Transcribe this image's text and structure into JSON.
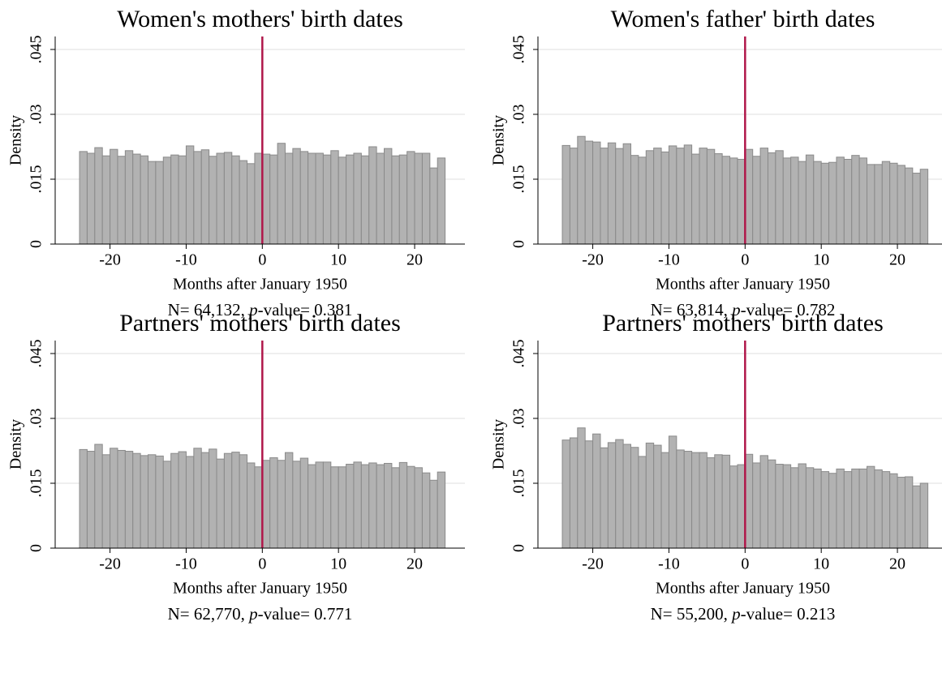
{
  "chart_data": [
    {
      "type": "histogram",
      "title": "Women's mothers' birth dates",
      "xlabel": "Months after January 1950",
      "ylabel": "Density",
      "note": [
        "N= 64,132, ",
        "p",
        "-value= 0.381"
      ],
      "bins": [
        -24,
        -23,
        -22,
        -21,
        -20,
        -19,
        -18,
        -17,
        -16,
        -15,
        -14,
        -13,
        -12,
        -11,
        -10,
        -9,
        -8,
        -7,
        -6,
        -5,
        -4,
        -3,
        -2,
        -1,
        0,
        1,
        2,
        3,
        4,
        5,
        6,
        7,
        8,
        9,
        10,
        11,
        12,
        13,
        14,
        15,
        16,
        17,
        18,
        19,
        20,
        21,
        22,
        23,
        24
      ],
      "values": [
        0.0214,
        0.021,
        0.0223,
        0.0204,
        0.0219,
        0.0203,
        0.0216,
        0.0208,
        0.0204,
        0.0191,
        0.0191,
        0.0201,
        0.0206,
        0.0204,
        0.0227,
        0.0214,
        0.0218,
        0.0203,
        0.021,
        0.0212,
        0.0204,
        0.0193,
        0.0186,
        0.021,
        0.0208,
        0.0206,
        0.0233,
        0.021,
        0.0221,
        0.0214,
        0.021,
        0.021,
        0.0206,
        0.0216,
        0.0201,
        0.0206,
        0.021,
        0.0204,
        0.0225,
        0.021,
        0.0221,
        0.0204,
        0.0206,
        0.0214,
        0.021,
        0.021,
        0.0176,
        0.0199
      ],
      "color": "#b2b2b2",
      "edgecolor": "#8a8a8a",
      "ref_line": {
        "x": 0,
        "color": "#b0174a"
      },
      "xlim": [
        -27.2,
        26.6
      ],
      "ylim": [
        0,
        0.048
      ],
      "xticks": [
        -20,
        -10,
        0,
        10,
        20
      ],
      "yticks": [
        0,
        {
          "value": 0.015,
          "label": ".015"
        },
        {
          "value": 0.03,
          "label": ".03"
        },
        {
          "value": 0.045,
          "label": ".045"
        }
      ],
      "grid": true
    },
    {
      "type": "histogram",
      "title": "Women's father' birth dates",
      "xlabel": "Months after January 1950",
      "ylabel": "Density",
      "note": [
        "N= 63,814, ",
        "p",
        "-value= 0.782"
      ],
      "bins": [
        -24,
        -23,
        -22,
        -21,
        -20,
        -19,
        -18,
        -17,
        -16,
        -15,
        -14,
        -13,
        -12,
        -11,
        -10,
        -9,
        -8,
        -7,
        -6,
        -5,
        -4,
        -3,
        -2,
        -1,
        0,
        1,
        2,
        3,
        4,
        5,
        6,
        7,
        8,
        9,
        10,
        11,
        12,
        13,
        14,
        15,
        16,
        17,
        18,
        19,
        20,
        21,
        22,
        23,
        24
      ],
      "values": [
        0.0228,
        0.0222,
        0.0249,
        0.0238,
        0.0236,
        0.0222,
        0.0234,
        0.0221,
        0.0232,
        0.0205,
        0.0201,
        0.0216,
        0.0222,
        0.0213,
        0.0227,
        0.0222,
        0.0229,
        0.0208,
        0.0222,
        0.0219,
        0.0209,
        0.0203,
        0.0199,
        0.0196,
        0.0219,
        0.0203,
        0.0222,
        0.0211,
        0.0216,
        0.0199,
        0.0201,
        0.0191,
        0.0206,
        0.0191,
        0.0187,
        0.0189,
        0.0201,
        0.0196,
        0.0205,
        0.0199,
        0.0184,
        0.0184,
        0.0191,
        0.0187,
        0.0182,
        0.0176,
        0.0164,
        0.0173
      ],
      "color": "#b2b2b2",
      "edgecolor": "#8a8a8a",
      "ref_line": {
        "x": 0,
        "color": "#b0174a"
      },
      "xlim": [
        -27.2,
        26.6
      ],
      "ylim": [
        0,
        0.048
      ],
      "xticks": [
        -20,
        -10,
        0,
        10,
        20
      ],
      "yticks": [
        0,
        {
          "value": 0.015,
          "label": ".015"
        },
        {
          "value": 0.03,
          "label": ".03"
        },
        {
          "value": 0.045,
          "label": ".045"
        }
      ],
      "grid": true
    },
    {
      "type": "histogram",
      "title": "Partners' mothers' birth dates",
      "xlabel": "Months after January 1950",
      "ylabel": "Density",
      "note": [
        "N= 62,770, ",
        "p",
        "-value= 0.771"
      ],
      "bins": [
        -24,
        -23,
        -22,
        -21,
        -20,
        -19,
        -18,
        -17,
        -16,
        -15,
        -14,
        -13,
        -12,
        -11,
        -10,
        -9,
        -8,
        -7,
        -6,
        -5,
        -4,
        -3,
        -2,
        -1,
        0,
        1,
        2,
        3,
        4,
        5,
        6,
        7,
        8,
        9,
        10,
        11,
        12,
        13,
        14,
        15,
        16,
        17,
        18,
        19,
        20,
        21,
        22,
        23,
        24
      ],
      "values": [
        0.0228,
        0.0224,
        0.024,
        0.0216,
        0.0231,
        0.0226,
        0.0224,
        0.0219,
        0.0214,
        0.0216,
        0.0213,
        0.0201,
        0.0219,
        0.0223,
        0.0212,
        0.0231,
        0.0221,
        0.0229,
        0.0206,
        0.0219,
        0.0222,
        0.0216,
        0.0197,
        0.0188,
        0.0203,
        0.0209,
        0.0203,
        0.0221,
        0.0201,
        0.0208,
        0.0193,
        0.0199,
        0.0199,
        0.0188,
        0.0188,
        0.0194,
        0.0199,
        0.0193,
        0.0197,
        0.0193,
        0.0196,
        0.0186,
        0.0198,
        0.0189,
        0.0186,
        0.0174,
        0.0157,
        0.0176
      ],
      "color": "#b2b2b2",
      "edgecolor": "#8a8a8a",
      "ref_line": {
        "x": 0,
        "color": "#b0174a"
      },
      "xlim": [
        -27.2,
        26.6
      ],
      "ylim": [
        0,
        0.048
      ],
      "xticks": [
        -20,
        -10,
        0,
        10,
        20
      ],
      "yticks": [
        0,
        {
          "value": 0.015,
          "label": ".015"
        },
        {
          "value": 0.03,
          "label": ".03"
        },
        {
          "value": 0.045,
          "label": ".045"
        }
      ],
      "grid": true
    },
    {
      "type": "histogram",
      "title": "Partners' mothers' birth dates",
      "xlabel": "Months after January 1950",
      "ylabel": "Density",
      "note": [
        "N= 55,200, ",
        "p",
        "-value= 0.213"
      ],
      "bins": [
        -24,
        -23,
        -22,
        -21,
        -20,
        -19,
        -18,
        -17,
        -16,
        -15,
        -14,
        -13,
        -12,
        -11,
        -10,
        -9,
        -8,
        -7,
        -6,
        -5,
        -4,
        -3,
        -2,
        -1,
        0,
        1,
        2,
        3,
        4,
        5,
        6,
        7,
        8,
        9,
        10,
        11,
        12,
        13,
        14,
        15,
        16,
        17,
        18,
        19,
        20,
        21,
        22,
        23,
        24
      ],
      "values": [
        0.025,
        0.0255,
        0.0278,
        0.0248,
        0.0264,
        0.0232,
        0.0244,
        0.0251,
        0.024,
        0.0233,
        0.0212,
        0.0243,
        0.0238,
        0.0221,
        0.0259,
        0.0227,
        0.0224,
        0.0221,
        0.0221,
        0.0209,
        0.0216,
        0.0215,
        0.019,
        0.0193,
        0.0217,
        0.0197,
        0.0214,
        0.0204,
        0.0194,
        0.0193,
        0.0186,
        0.0195,
        0.0186,
        0.0183,
        0.0177,
        0.0173,
        0.0183,
        0.0177,
        0.0183,
        0.0183,
        0.0189,
        0.0181,
        0.0177,
        0.0172,
        0.0164,
        0.0165,
        0.0144,
        0.015
      ],
      "color": "#b2b2b2",
      "edgecolor": "#8a8a8a",
      "ref_line": {
        "x": 0,
        "color": "#b0174a"
      },
      "xlim": [
        -27.2,
        26.6
      ],
      "ylim": [
        0,
        0.048
      ],
      "xticks": [
        -20,
        -10,
        0,
        10,
        20
      ],
      "yticks": [
        0,
        {
          "value": 0.015,
          "label": ".015"
        },
        {
          "value": 0.03,
          "label": ".03"
        },
        {
          "value": 0.045,
          "label": ".045"
        }
      ],
      "grid": true
    }
  ]
}
